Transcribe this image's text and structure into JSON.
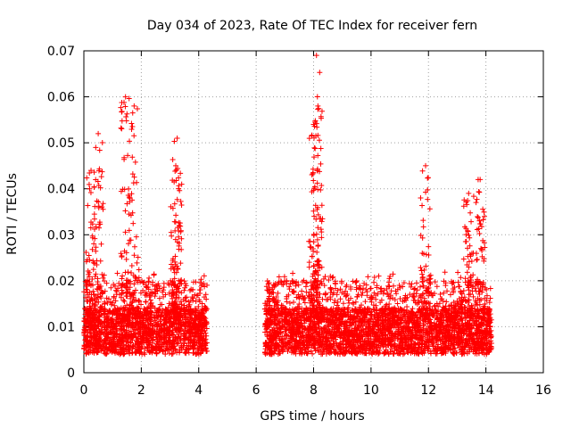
{
  "chart_data": {
    "type": "scatter",
    "title": "Day 034 of 2023, Rate Of TEC Index for receiver fern",
    "xlabel": "GPS time / hours",
    "ylabel": "ROTI / TECUs",
    "xlim": [
      0,
      16
    ],
    "ylim": [
      0,
      0.07
    ],
    "xticks": [
      0,
      2,
      4,
      6,
      8,
      10,
      12,
      14,
      16
    ],
    "xtick_labels": [
      "0",
      "2",
      "4",
      "6",
      "8",
      "10",
      "12",
      "14",
      "16"
    ],
    "yticks": [
      0,
      0.01,
      0.02,
      0.03,
      0.04,
      0.05,
      0.06,
      0.07
    ],
    "ytick_labels": [
      "0",
      "0.01",
      "0.02",
      "0.03",
      "0.04",
      "0.05",
      "0.06",
      "0.07"
    ],
    "grid": true,
    "marker": "+",
    "color": "#ff0000",
    "segments": [
      {
        "x_start": 0.0,
        "x_end": 4.3,
        "baseline": 0.009
      },
      {
        "x_start": 6.3,
        "x_end": 14.2,
        "baseline": 0.009
      }
    ],
    "peaks": [
      {
        "x": 1.45,
        "y": 0.06
      },
      {
        "x": 1.75,
        "y": 0.058
      },
      {
        "x": 0.5,
        "y": 0.052
      },
      {
        "x": 0.25,
        "y": 0.044
      },
      {
        "x": 3.25,
        "y": 0.051
      },
      {
        "x": 3.2,
        "y": 0.045
      },
      {
        "x": 8.1,
        "y": 0.069
      },
      {
        "x": 8.15,
        "y": 0.058
      },
      {
        "x": 8.0,
        "y": 0.054
      },
      {
        "x": 11.9,
        "y": 0.045
      },
      {
        "x": 13.8,
        "y": 0.042
      },
      {
        "x": 13.4,
        "y": 0.039
      }
    ]
  }
}
